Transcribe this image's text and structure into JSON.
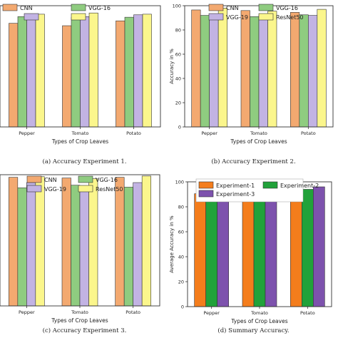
{
  "colors": {
    "cnn": "#f3a970",
    "vgg16": "#8fcc80",
    "vgg19": "#c2b3e3",
    "resnet50": "#fbf68c",
    "exp1": "#f47d1c",
    "exp2": "#21a23a",
    "exp3": "#7d52ad",
    "axis": "#333333"
  },
  "chart_data": [
    {
      "type": "bar",
      "caption": "(a) Accuracy Experiment 1.",
      "xlabel": "Types of Crop Leaves",
      "ylabel": "",
      "categories": [
        "Pepper",
        "Tomato",
        "Potato"
      ],
      "series": [
        {
          "name": "CNN",
          "values": [
            85.5,
            83.5,
            87.5
          ]
        },
        {
          "name": "VGG-16",
          "values": [
            91,
            90.5,
            90.5
          ]
        },
        {
          "name": "",
          "values": [
            92,
            91,
            92.5
          ]
        },
        {
          "name": "",
          "values": [
            93,
            94,
            93
          ]
        }
      ],
      "ylim": [
        0,
        100
      ]
    },
    {
      "type": "bar",
      "caption": "(b) Accuracy Experiment 2.",
      "xlabel": "Types of Crop Leaves",
      "ylabel": "Accuracy in %",
      "categories": [
        "Pepper",
        "Tomato",
        "Potato"
      ],
      "series": [
        {
          "name": "CNN",
          "values": [
            96.5,
            96,
            94.5
          ]
        },
        {
          "name": "VGG-16",
          "values": [
            92,
            91,
            92.5
          ]
        },
        {
          "name": "VGG-19",
          "values": [
            93,
            92,
            92
          ]
        },
        {
          "name": "ResNet50",
          "values": [
            98,
            95.5,
            97
          ]
        }
      ],
      "ylim": [
        0,
        100
      ],
      "yticks": [
        0,
        20,
        40,
        60,
        80,
        100
      ]
    },
    {
      "type": "bar",
      "caption": "(c) Accuracy Experiment 3.",
      "xlabel": "Types of Crop Leaves",
      "ylabel": "",
      "categories": [
        "Pepper",
        "Tomato",
        "Potato"
      ],
      "series": [
        {
          "name": "CNN",
          "values": [
            98,
            97.5,
            98
          ]
        },
        {
          "name": "VGG-16",
          "values": [
            90,
            92,
            90.5
          ]
        },
        {
          "name": "VGG-19",
          "values": [
            94,
            91,
            94
          ]
        },
        {
          "name": "ResNet50",
          "values": [
            98.5,
            97,
            99
          ]
        }
      ],
      "ylim": [
        0,
        100
      ]
    },
    {
      "type": "bar",
      "caption": "(d) Summary Accuracy.",
      "xlabel": "Types of Crop Leaves",
      "ylabel": "Average Accuracy in %",
      "categories": [
        "Pepper",
        "Tomato",
        "Potato"
      ],
      "series": [
        {
          "name": "Experiment-1",
          "values": [
            90.5,
            89.5,
            91
          ]
        },
        {
          "name": "Experiment-2",
          "values": [
            94.5,
            93.5,
            94
          ]
        },
        {
          "name": "Experiment-3",
          "values": [
            95.5,
            94.5,
            96
          ]
        }
      ],
      "ylim": [
        0,
        100
      ],
      "yticks": [
        0,
        20,
        40,
        60,
        80,
        100
      ]
    }
  ]
}
